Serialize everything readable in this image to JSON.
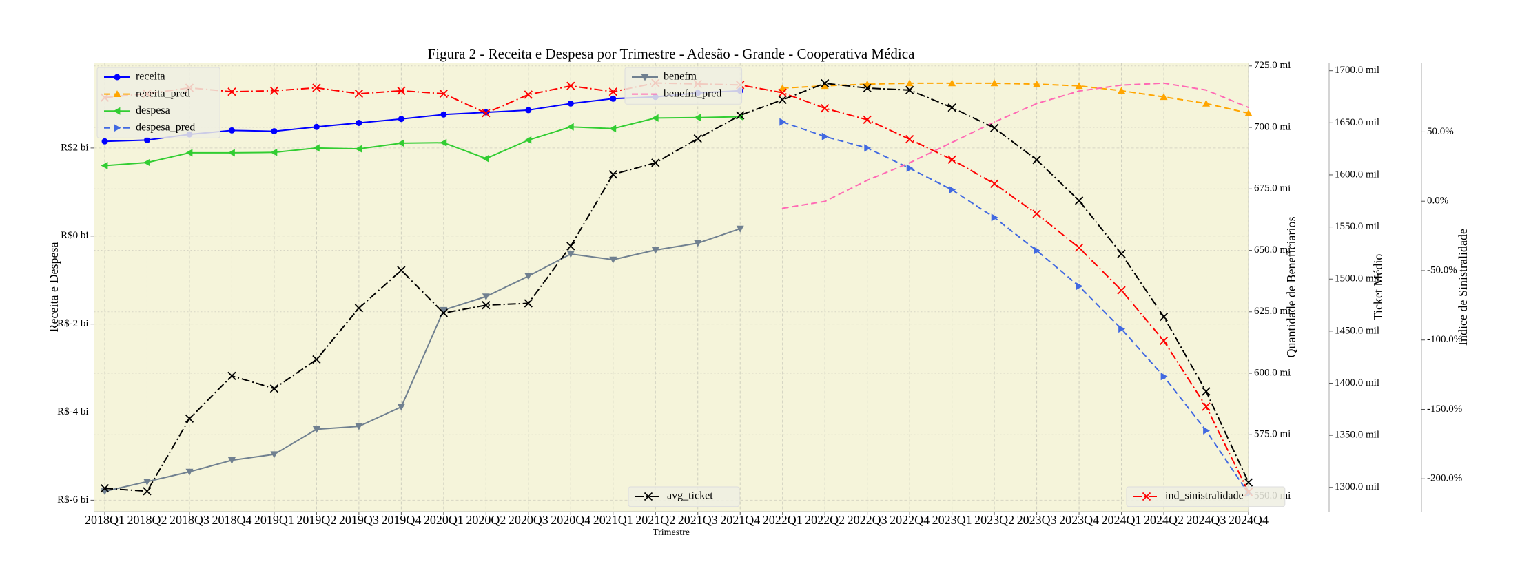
{
  "chart_data": {
    "type": "line",
    "title": "Figura 2 - Receita e Despesa por Trimestre - Adesão - Grande - Cooperativa Médica",
    "xlabel": "Trimestre",
    "ylabel": "Receita e Despesa",
    "y2label": "Quantidade de Beneficiarios",
    "y3label": "Ticket Médio",
    "y4label": "Indice de Sinistralidade",
    "categories": [
      "2018Q1",
      "2018Q2",
      "2018Q3",
      "2018Q4",
      "2019Q1",
      "2019Q2",
      "2019Q3",
      "2019Q4",
      "2020Q1",
      "2020Q2",
      "2020Q3",
      "2020Q4",
      "2021Q1",
      "2021Q2",
      "2021Q3",
      "2021Q4",
      "2022Q1",
      "2022Q2",
      "2022Q3",
      "2022Q4",
      "2023Q1",
      "2023Q2",
      "2023Q3",
      "2023Q4",
      "2024Q1",
      "2024Q2",
      "2024Q3",
      "2024Q4"
    ],
    "ylim": [
      -6.26,
      3.93
    ],
    "yticks": [
      {
        "value": -6,
        "label": "R$-6 bi"
      },
      {
        "value": -4,
        "label": "R$-4 bi"
      },
      {
        "value": -2,
        "label": "R$-2 bi"
      },
      {
        "value": 0,
        "label": "R$0 bi"
      },
      {
        "value": 2,
        "label": "R$2 bi"
      }
    ],
    "y2lim": [
      543.7,
      726.2
    ],
    "y2ticks": [
      {
        "value": 550,
        "label": "550.0 mi"
      },
      {
        "value": 575,
        "label": "575.0 mi"
      },
      {
        "value": 600,
        "label": "600.0 mi"
      },
      {
        "value": 625,
        "label": "625.0 mi"
      },
      {
        "value": 650,
        "label": "650.0 mi"
      },
      {
        "value": 675,
        "label": "675.0 mi"
      },
      {
        "value": 700,
        "label": "700.0 mi"
      },
      {
        "value": 725,
        "label": "725.0 mi"
      }
    ],
    "y3lim": [
      1276.7,
      1707.4
    ],
    "y3ticks": [
      {
        "value": 1300,
        "label": "1300.0 mil"
      },
      {
        "value": 1350,
        "label": "1350.0 mil"
      },
      {
        "value": 1400,
        "label": "1400.0 mil"
      },
      {
        "value": 1450,
        "label": "1450.0 mil"
      },
      {
        "value": 1500,
        "label": "1500.0 mil"
      },
      {
        "value": 1550,
        "label": "1550.0 mil"
      },
      {
        "value": 1600,
        "label": "1600.0 mil"
      },
      {
        "value": 1650,
        "label": "1650.0 mil"
      },
      {
        "value": 1700,
        "label": "1700.0 mil"
      }
    ],
    "y4lim": [
      -223.7,
      99.6
    ],
    "y4ticks": [
      {
        "value": -200,
        "label": "-200.0%"
      },
      {
        "value": -150,
        "label": "-150.0%"
      },
      {
        "value": -100,
        "label": "-100.0%"
      },
      {
        "value": -50,
        "label": "-50.0%"
      },
      {
        "value": 0,
        "label": "0.0%"
      },
      {
        "value": 50,
        "label": "50.0%"
      }
    ],
    "grid": true,
    "series": [
      {
        "name": "receita",
        "color": "#0000ff",
        "linestyle": "-",
        "marker": "o",
        "axis": "y",
        "values": [
          2.15,
          2.18,
          2.31,
          2.4,
          2.38,
          2.48,
          2.57,
          2.66,
          2.76,
          2.81,
          2.86,
          3.01,
          3.12,
          3.16,
          3.25,
          3.3,
          null,
          null,
          null,
          null,
          null,
          null,
          null,
          null,
          null,
          null,
          null,
          null
        ]
      },
      {
        "name": "receita_pred",
        "color": "#ffa500",
        "linestyle": "--",
        "marker": "^",
        "axis": "y",
        "values": [
          null,
          null,
          null,
          null,
          null,
          null,
          null,
          null,
          null,
          null,
          null,
          null,
          null,
          null,
          null,
          null,
          3.36,
          3.41,
          3.45,
          3.47,
          3.47,
          3.47,
          3.45,
          3.41,
          3.3,
          3.16,
          3.01,
          2.79
        ]
      },
      {
        "name": "despesa",
        "color": "#32cd32",
        "linestyle": "-",
        "marker": "<",
        "axis": "y",
        "values": [
          1.6,
          1.67,
          1.89,
          1.89,
          1.9,
          2.0,
          1.98,
          2.11,
          2.12,
          1.76,
          2.18,
          2.48,
          2.44,
          2.68,
          2.69,
          2.71,
          null,
          null,
          null,
          null,
          null,
          null,
          null,
          null,
          null,
          null,
          null,
          null
        ]
      },
      {
        "name": "despesa_pred",
        "color": "#4169e1",
        "linestyle": "--",
        "marker": ">",
        "axis": "y",
        "values": [
          null,
          null,
          null,
          null,
          null,
          null,
          null,
          null,
          null,
          null,
          null,
          null,
          null,
          null,
          null,
          null,
          2.59,
          2.26,
          2.0,
          1.54,
          1.05,
          0.42,
          -0.33,
          -1.14,
          -2.11,
          -3.19,
          -4.42,
          -5.85
        ]
      },
      {
        "name": "benefm",
        "color": "#708090",
        "linestyle": "-",
        "marker": "v",
        "axis": "y2",
        "values": [
          551.97,
          555.9,
          559.9,
          564.6,
          567.0,
          577.2,
          578.4,
          586.3,
          625.7,
          631.2,
          639.5,
          648.5,
          646.2,
          650.1,
          652.9,
          658.8,
          null,
          null,
          null,
          null,
          null,
          null,
          null,
          null,
          null,
          null,
          null,
          null
        ]
      },
      {
        "name": "benefm_pred",
        "color": "#ff69b4",
        "linestyle": "--",
        "axis": "y2",
        "values": [
          null,
          null,
          null,
          null,
          null,
          null,
          null,
          null,
          null,
          null,
          null,
          null,
          null,
          null,
          null,
          null,
          667.1,
          669.9,
          678.5,
          685.6,
          693.9,
          702.2,
          709.7,
          714.8,
          717.2,
          718.0,
          715.2,
          708.1
        ]
      },
      {
        "name": "avg_ticket",
        "color": "#000000",
        "linestyle": "-.",
        "marker": "x",
        "axis": "y3",
        "values": [
          1299.1,
          1296.3,
          1366.0,
          1407.0,
          1394.9,
          1422.8,
          1472.1,
          1508.4,
          1467.4,
          1474.9,
          1476.7,
          1531.6,
          1600.5,
          1611.6,
          1634.9,
          1657.2,
          1672.1,
          1687.9,
          1683.3,
          1681.4,
          1664.6,
          1645.1,
          1614.4,
          1575.3,
          1524.2,
          1463.7,
          1392.1,
          1304.7
        ]
      },
      {
        "name": "ind_sinistralidade",
        "color": "#ff0000",
        "linestyle": "-.",
        "marker": "x",
        "axis": "y4",
        "values": [
          74.7,
          77.5,
          81.7,
          78.9,
          79.6,
          81.7,
          77.5,
          79.6,
          77.5,
          63.5,
          76.8,
          83.1,
          78.9,
          85.2,
          84.5,
          83.8,
          78.2,
          67.0,
          58.7,
          44.7,
          30.0,
          12.6,
          -9.1,
          -33.5,
          -64.2,
          -100.6,
          -148.0,
          -209.5
        ]
      }
    ]
  }
}
